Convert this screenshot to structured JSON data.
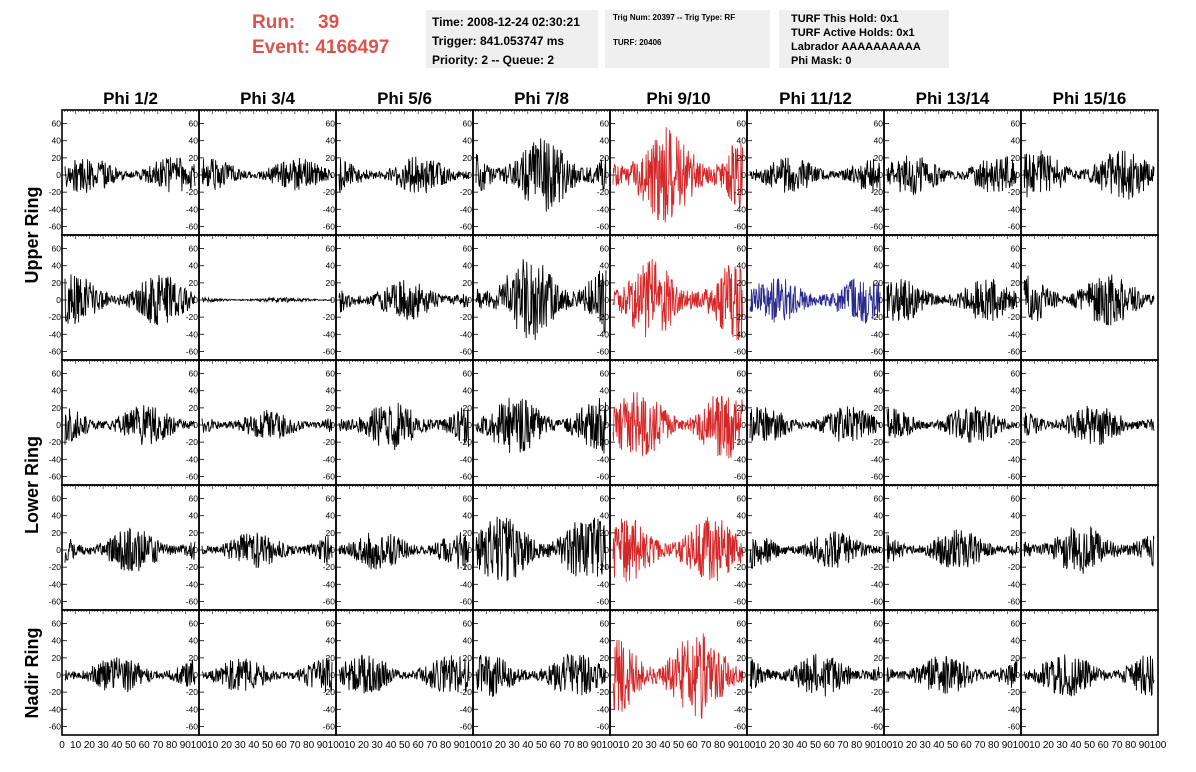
{
  "header": {
    "run_label": "Run:",
    "run_value": "39",
    "event_label": "Event:",
    "event_value": "4166497",
    "time": "Time: 2008-12-24 02:30:21",
    "trigger": "Trigger: 841.053747 ms",
    "priority": "Priority: 2 -- Queue: 2",
    "trig_num": "Trig Num: 20397 -- Trig Type: RF",
    "turf": "TURF: 20406",
    "turf_this_hold": "TURF This Hold: 0x1",
    "turf_active_holds": "TURF Active Holds: 0x1",
    "labrador": "Labrador AAAAAAAAAA",
    "phi_mask": "Phi Mask: 0"
  },
  "columns": [
    "Phi 1/2",
    "Phi 3/4",
    "Phi 5/6",
    "Phi 7/8",
    "Phi 9/10",
    "Phi 11/12",
    "Phi 13/14",
    "Phi 15/16"
  ],
  "ring_labels": [
    "Upper Ring",
    "Lower Ring",
    "Nadir Ring"
  ],
  "colors": {
    "normal": "#000000",
    "triggered": "#d62728",
    "highlight": "#2b2b8f",
    "title_red": "#d9534f"
  },
  "chart_data": {
    "type": "line",
    "description_grid": "5 rows x 8 columns of waveform panels",
    "xlim": [
      0,
      100
    ],
    "ylim": [
      -70,
      70
    ],
    "y_ticks": [
      -60,
      -40,
      -20,
      0,
      20,
      40,
      60
    ],
    "x_tick_labels": [
      "0",
      "10",
      "20",
      "30",
      "40",
      "50",
      "60",
      "70",
      "80",
      "90",
      "100"
    ],
    "samples": 260,
    "panels": [
      [
        {
          "amp": 11,
          "color": "normal"
        },
        {
          "amp": 10,
          "color": "normal"
        },
        {
          "amp": 11,
          "color": "normal"
        },
        {
          "amp": 22,
          "color": "normal"
        },
        {
          "amp": 28,
          "color": "triggered"
        },
        {
          "amp": 11,
          "color": "normal"
        },
        {
          "amp": 12,
          "color": "normal"
        },
        {
          "amp": 15,
          "color": "normal"
        }
      ],
      [
        {
          "amp": 15,
          "color": "normal"
        },
        {
          "amp": 1.5,
          "color": "normal"
        },
        {
          "amp": 12,
          "color": "normal"
        },
        {
          "amp": 25,
          "color": "normal"
        },
        {
          "amp": 24,
          "color": "triggered"
        },
        {
          "amp": 14,
          "color": "highlight"
        },
        {
          "amp": 13,
          "color": "normal"
        },
        {
          "amp": 16,
          "color": "normal"
        }
      ],
      [
        {
          "amp": 12,
          "color": "normal"
        },
        {
          "amp": 9,
          "color": "normal"
        },
        {
          "amp": 15,
          "color": "normal"
        },
        {
          "amp": 17,
          "color": "normal"
        },
        {
          "amp": 20,
          "color": "triggered"
        },
        {
          "amp": 11,
          "color": "normal"
        },
        {
          "amp": 11,
          "color": "normal"
        },
        {
          "amp": 12,
          "color": "normal"
        }
      ],
      [
        {
          "amp": 13,
          "color": "normal"
        },
        {
          "amp": 11,
          "color": "normal"
        },
        {
          "amp": 12,
          "color": "normal"
        },
        {
          "amp": 20,
          "color": "normal"
        },
        {
          "amp": 20,
          "color": "triggered"
        },
        {
          "amp": 11,
          "color": "normal"
        },
        {
          "amp": 12,
          "color": "normal"
        },
        {
          "amp": 15,
          "color": "normal"
        }
      ],
      [
        {
          "amp": 11,
          "color": "normal"
        },
        {
          "amp": 10,
          "color": "normal"
        },
        {
          "amp": 12,
          "color": "normal"
        },
        {
          "amp": 13,
          "color": "normal"
        },
        {
          "amp": 26,
          "color": "triggered"
        },
        {
          "amp": 13,
          "color": "normal"
        },
        {
          "amp": 12,
          "color": "normal"
        },
        {
          "amp": 13,
          "color": "normal"
        }
      ]
    ]
  }
}
